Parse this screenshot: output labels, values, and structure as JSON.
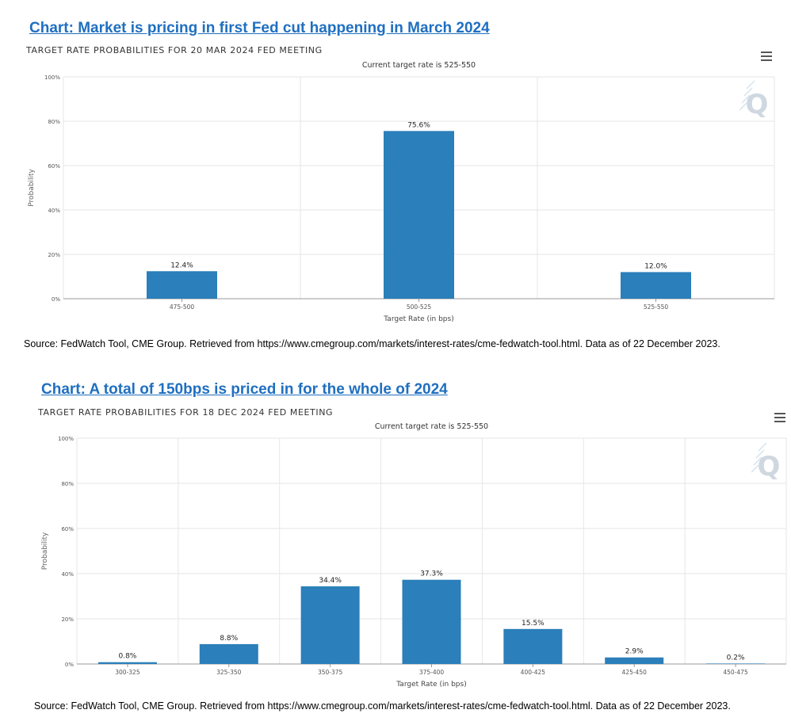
{
  "charts": [
    {
      "headline": "Chart: Market is pricing in first Fed cut happening in March 2024",
      "subtitle": "TARGET RATE PROBABILITIES FOR 20 MAR 2024 FED MEETING",
      "current_rate_note": "Current target rate is 525-550",
      "source": "Source: FedWatch Tool, CME Group. Retrieved from https://www.cmegroup.com/markets/interest-rates/cme-fedwatch-tool.html. Data as of 22 December 2023.",
      "watermark": "Q",
      "colors": {
        "bar": "#2b7fba",
        "headline": "#1f6fc0",
        "grid": "#e6e6e6"
      }
    },
    {
      "headline": "Chart: A total of 150bps is priced in for the whole of 2024",
      "subtitle": "TARGET RATE PROBABILITIES FOR 18 DEC 2024 FED MEETING",
      "current_rate_note": "Current target rate is 525-550",
      "source": "Source: FedWatch Tool, CME Group. Retrieved from https://www.cmegroup.com/markets/interest-rates/cme-fedwatch-tool.html. Data as of 22 December 2023.",
      "watermark": "Q",
      "colors": {
        "bar": "#2b7fba",
        "headline": "#1f6fc0",
        "grid": "#e6e6e6"
      }
    }
  ],
  "chart_data": [
    {
      "type": "bar",
      "title": "TARGET RATE PROBABILITIES FOR 20 MAR 2024 FED MEETING",
      "subtitle": "Current target rate is 525-550",
      "xlabel": "Target Rate (in bps)",
      "ylabel": "Probability",
      "ylim": [
        0,
        100
      ],
      "yticks": [
        "0%",
        "20%",
        "40%",
        "60%",
        "80%",
        "100%"
      ],
      "grid": true,
      "categories": [
        "475-500",
        "500-525",
        "525-550"
      ],
      "values": [
        12.4,
        75.6,
        12.0
      ],
      "value_labels": [
        "12.4%",
        "75.6%",
        "12.0%"
      ]
    },
    {
      "type": "bar",
      "title": "TARGET RATE PROBABILITIES FOR 18 DEC 2024 FED MEETING",
      "subtitle": "Current target rate is 525-550",
      "xlabel": "Target Rate (in bps)",
      "ylabel": "Probability",
      "ylim": [
        0,
        100
      ],
      "yticks": [
        "0%",
        "20%",
        "40%",
        "60%",
        "80%",
        "100%"
      ],
      "grid": true,
      "categories": [
        "300-325",
        "325-350",
        "350-375",
        "375-400",
        "400-425",
        "425-450",
        "450-475"
      ],
      "values": [
        0.8,
        8.8,
        34.4,
        37.3,
        15.5,
        2.9,
        0.2
      ],
      "value_labels": [
        "0.8%",
        "8.8%",
        "34.4%",
        "37.3%",
        "15.5%",
        "2.9%",
        "0.2%"
      ]
    }
  ]
}
